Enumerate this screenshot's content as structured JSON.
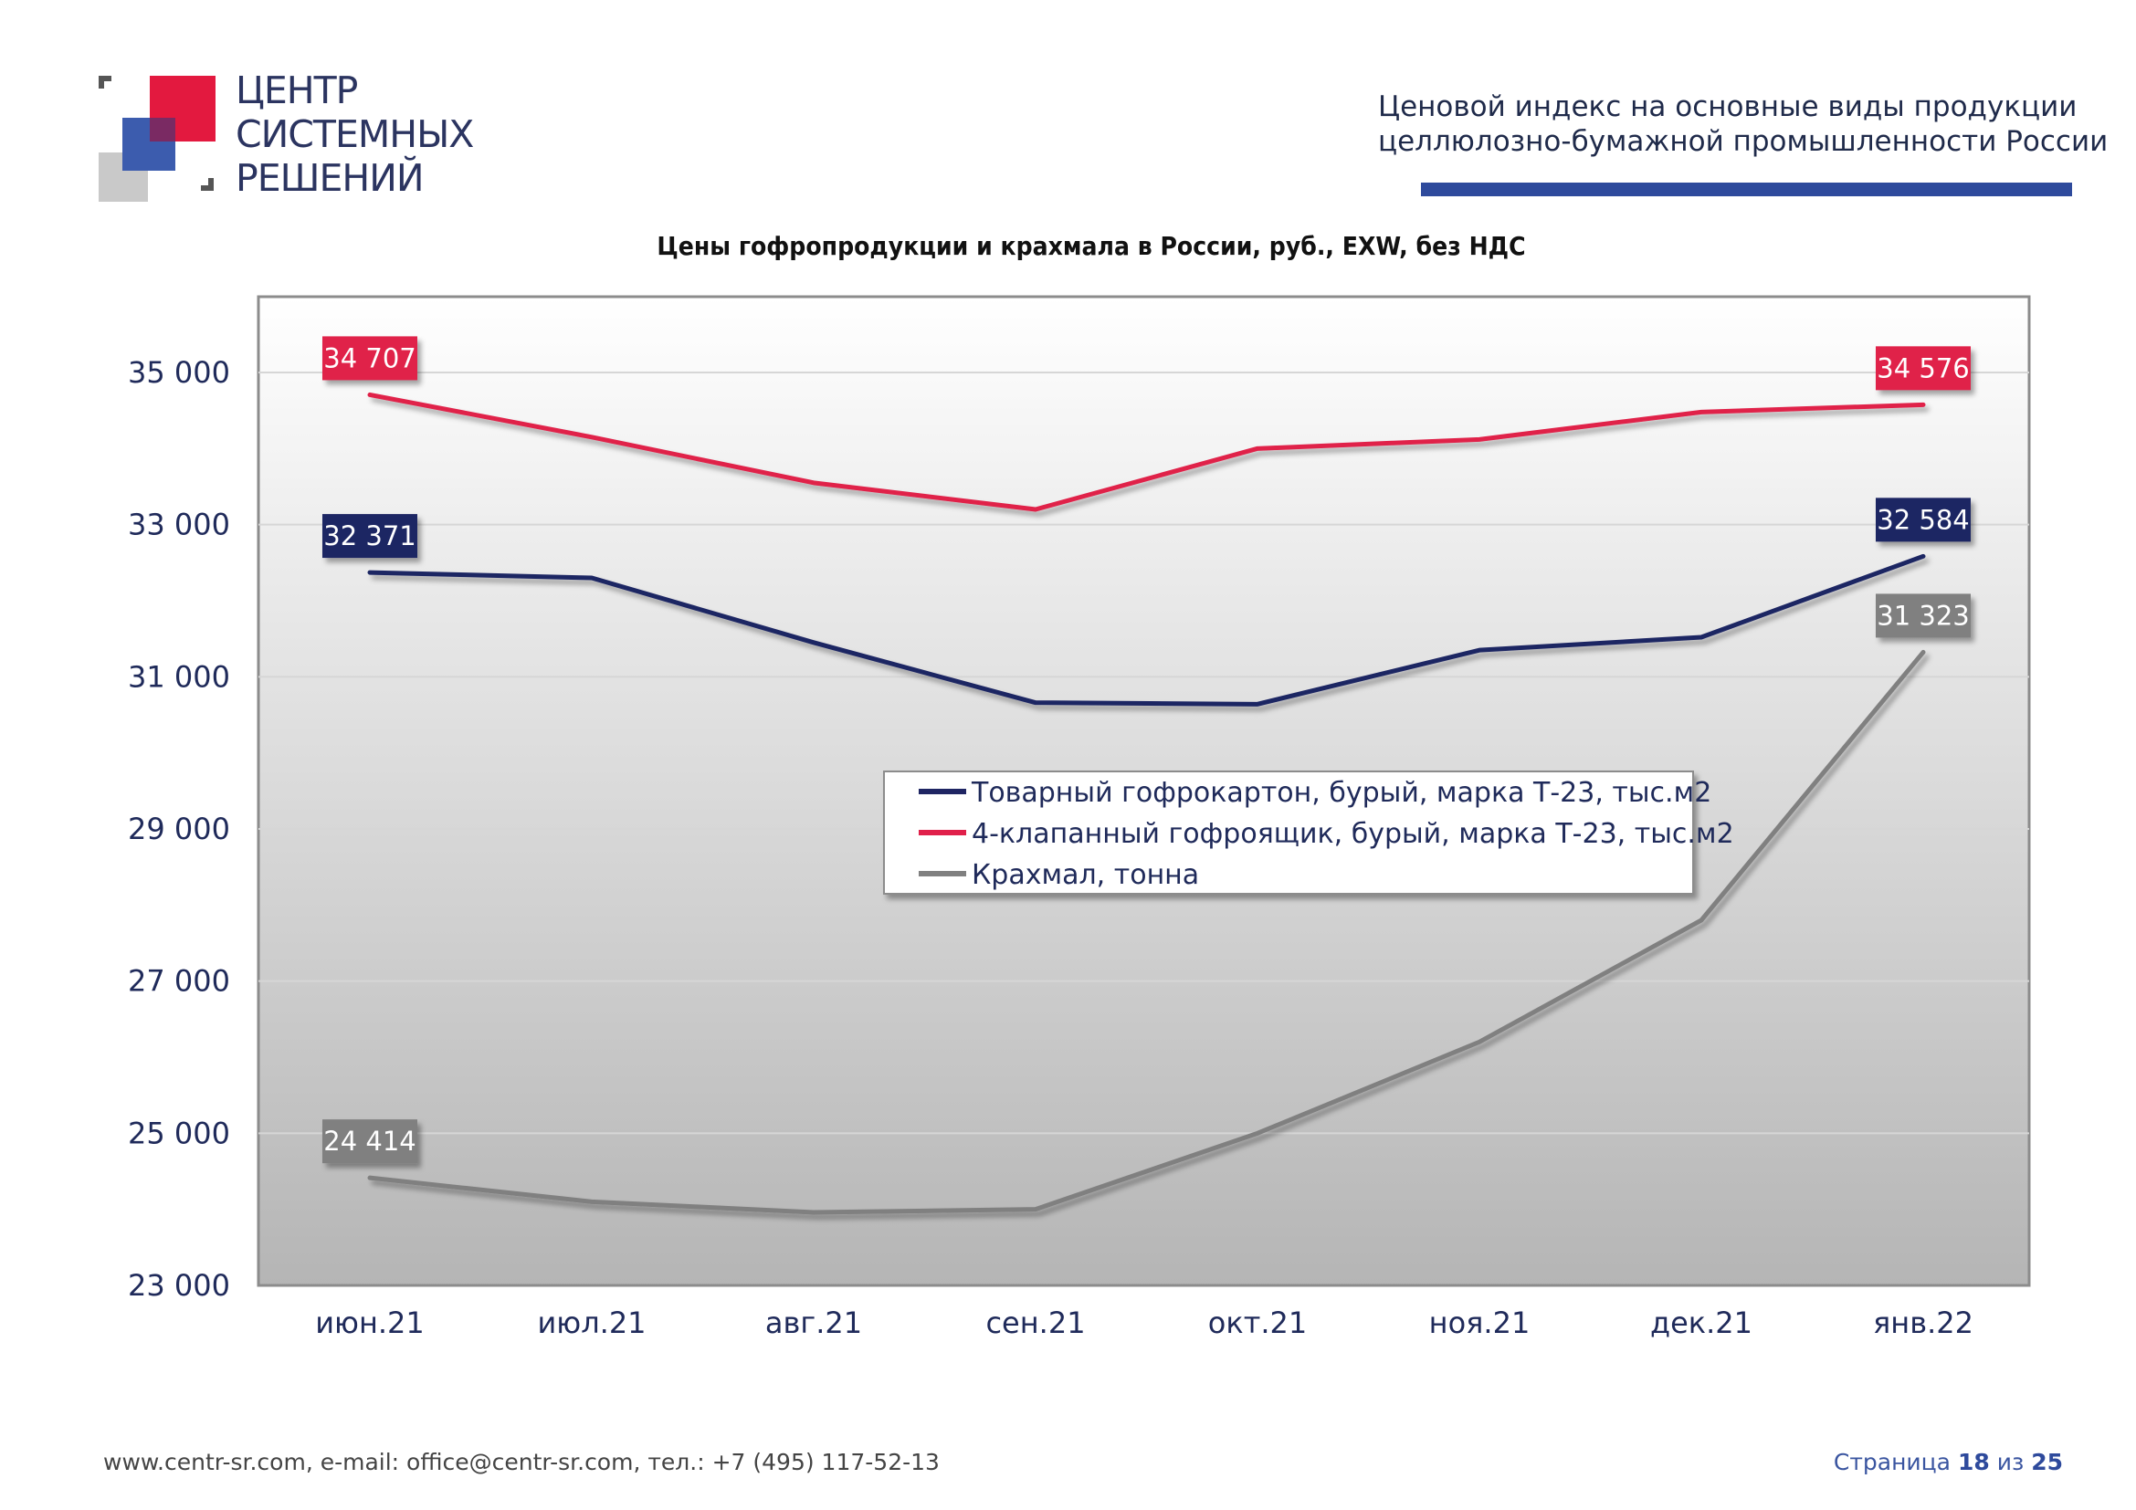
{
  "logo": {
    "lines": [
      "ЦЕНТР",
      "СИСТЕМНЫХ",
      "РЕШЕНИЙ"
    ]
  },
  "header": {
    "title_line1": "Ценовой индекс на основные виды продукции",
    "title_line2": "целлюлозно-бумажной промышленности России"
  },
  "footer": {
    "contacts": "www.centr-sr.com, e-mail: office@centr-sr.com, тел.: +7 (495) 117-52-13",
    "page_word": "Страница",
    "page_current": "18",
    "page_sep": "из",
    "page_total": "25"
  },
  "chart_data": {
    "type": "line",
    "title": "Цены гофропродукции и крахмала в России, руб., EXW, без НДС",
    "categories": [
      "июн.21",
      "июл.21",
      "авг.21",
      "сен.21",
      "окт.21",
      "ноя.21",
      "дек.21",
      "янв.22"
    ],
    "ylim": [
      23000,
      35000
    ],
    "yticks": [
      23000,
      25000,
      27000,
      29000,
      31000,
      33000,
      35000
    ],
    "ytick_labels": [
      "23 000",
      "25 000",
      "27 000",
      "29 000",
      "31 000",
      "33 000",
      "35 000"
    ],
    "grid": true,
    "legend_position": "center-right",
    "series": [
      {
        "name": "Товарный гофрокартон, бурый, марка Т-23, тыс.м2",
        "color": "#1f2563",
        "values": [
          32371,
          32300,
          31450,
          30660,
          30640,
          31350,
          31520,
          32584
        ],
        "labels": [
          {
            "index": 0,
            "text": "32 371"
          },
          {
            "index": 7,
            "text": "32 584"
          }
        ]
      },
      {
        "name": "4-клапанный гофроящик, бурый, марка Т-23, тыс.м2",
        "color": "#e0204a",
        "values": [
          34707,
          34150,
          33550,
          33200,
          34000,
          34120,
          34480,
          34576
        ],
        "labels": [
          {
            "index": 0,
            "text": "34 707"
          },
          {
            "index": 7,
            "text": "34 576"
          }
        ]
      },
      {
        "name": "Крахмал, тонна",
        "color": "#808080",
        "values": [
          24414,
          24100,
          23960,
          24000,
          25000,
          26200,
          27800,
          31323
        ],
        "labels": [
          {
            "index": 0,
            "text": "24 414"
          },
          {
            "index": 7,
            "text": "31 323"
          }
        ]
      }
    ]
  }
}
